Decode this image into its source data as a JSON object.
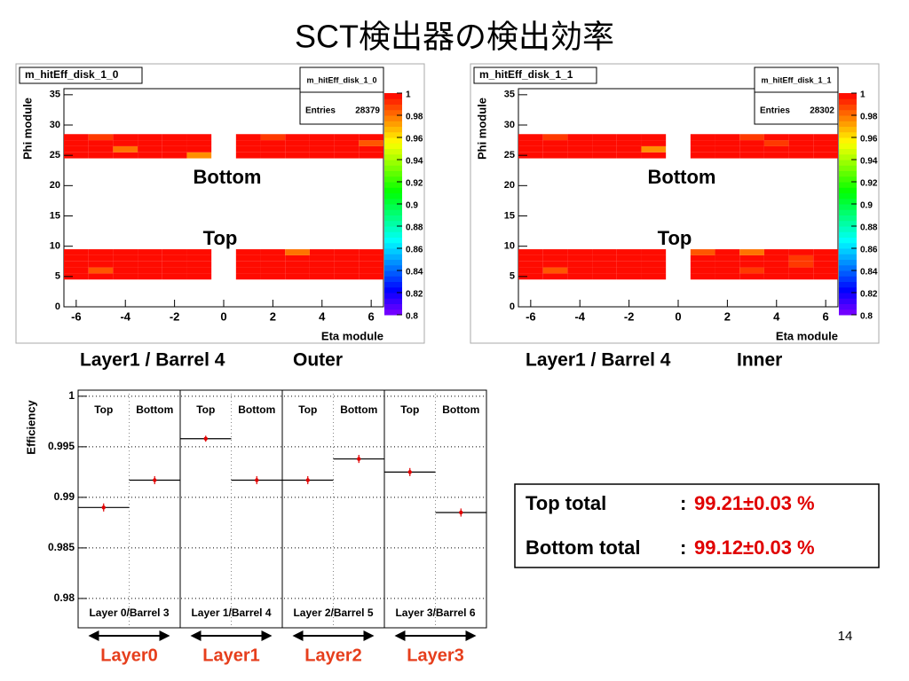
{
  "title": "SCT検出器の検出効率",
  "page_number": "14",
  "layer_labels": [
    "Layer0",
    "Layer1",
    "Layer2",
    "Layer3"
  ],
  "summary": [
    {
      "label": "Top total",
      "colon": ":",
      "value": "99.21±0.03 %"
    },
    {
      "label": "Bottom total",
      "colon": ":",
      "value": "99.12±0.03 %"
    }
  ],
  "chart_data": [
    {
      "type": "heatmap",
      "title": "m_hitEff_disk_1_0",
      "stats": {
        "title": "m_hitEff_disk_1_0",
        "entries_label": "Entries",
        "entries": 28379
      },
      "xlabel": "Eta module",
      "ylabel": "Phi module",
      "annotations": [
        "Bottom",
        "Top"
      ],
      "caption": "Layer1 / Barrel 4",
      "side": "Outer",
      "x": [
        -6,
        -5,
        -4,
        -3,
        -2,
        -1,
        1,
        2,
        3,
        4,
        5,
        6
      ],
      "y": [
        5,
        6,
        7,
        8,
        9,
        25,
        26,
        27,
        28
      ],
      "z": [
        [
          0.998,
          0.998,
          0.998,
          0.998,
          0.998,
          0.998,
          0.998,
          0.998,
          0.998,
          0.998,
          0.998,
          0.998
        ],
        [
          0.998,
          0.985,
          0.998,
          0.998,
          0.998,
          0.998,
          0.998,
          0.998,
          0.998,
          0.998,
          0.998,
          0.998
        ],
        [
          0.998,
          0.998,
          0.998,
          0.998,
          0.998,
          0.998,
          0.998,
          0.998,
          0.998,
          0.998,
          0.998,
          0.998
        ],
        [
          0.998,
          0.998,
          0.998,
          0.998,
          0.998,
          0.998,
          0.998,
          0.998,
          0.998,
          0.998,
          0.998,
          0.998
        ],
        [
          0.998,
          0.998,
          0.998,
          0.998,
          0.998,
          0.998,
          0.998,
          0.998,
          0.98,
          0.998,
          0.998,
          0.998
        ],
        [
          0.998,
          0.998,
          0.998,
          0.998,
          0.998,
          0.975,
          0.998,
          0.998,
          0.998,
          0.998,
          0.998,
          0.998
        ],
        [
          0.998,
          0.998,
          0.98,
          0.998,
          0.998,
          0.998,
          0.998,
          0.998,
          0.998,
          0.998,
          0.998,
          0.998
        ],
        [
          0.998,
          0.998,
          0.998,
          0.998,
          0.998,
          0.998,
          0.998,
          0.998,
          0.998,
          0.998,
          0.998,
          0.985
        ],
        [
          0.998,
          0.99,
          0.998,
          0.998,
          0.998,
          0.998,
          0.998,
          0.99,
          0.998,
          0.998,
          0.998,
          0.998
        ]
      ],
      "xlim": [
        -6.5,
        6.5
      ],
      "xticks": [
        -6,
        -4,
        -2,
        0,
        2,
        4,
        6
      ],
      "ylim": [
        0,
        36
      ],
      "yticks": [
        0,
        5,
        10,
        15,
        20,
        25,
        30,
        35
      ],
      "zlim": [
        0.8,
        1
      ],
      "zticks": [
        0.8,
        0.82,
        0.84,
        0.86,
        0.88,
        0.9,
        0.92,
        0.94,
        0.96,
        0.98,
        1
      ]
    },
    {
      "type": "heatmap",
      "title": "m_hitEff_disk_1_1",
      "stats": {
        "title": "m_hitEff_disk_1_1",
        "entries_label": "Entries",
        "entries": 28302
      },
      "xlabel": "Eta module",
      "ylabel": "Phi module",
      "annotations": [
        "Bottom",
        "Top"
      ],
      "caption": "Layer1 / Barrel 4",
      "side": "Inner",
      "x": [
        -6,
        -5,
        -4,
        -3,
        -2,
        -1,
        1,
        2,
        3,
        4,
        5,
        6
      ],
      "y": [
        5,
        6,
        7,
        8,
        9,
        25,
        26,
        27,
        28
      ],
      "z": [
        [
          0.998,
          0.998,
          0.998,
          0.998,
          0.998,
          0.998,
          0.998,
          0.998,
          0.998,
          0.998,
          0.998,
          0.998
        ],
        [
          0.998,
          0.985,
          0.998,
          0.998,
          0.998,
          0.998,
          0.998,
          0.998,
          0.99,
          0.998,
          0.998,
          0.998
        ],
        [
          0.998,
          0.998,
          0.998,
          0.998,
          0.998,
          0.998,
          0.998,
          0.998,
          0.998,
          0.998,
          0.99,
          0.998
        ],
        [
          0.998,
          0.998,
          0.998,
          0.998,
          0.998,
          0.998,
          0.998,
          0.998,
          0.998,
          0.998,
          0.99,
          0.998
        ],
        [
          0.998,
          0.998,
          0.998,
          0.998,
          0.998,
          0.998,
          0.985,
          0.998,
          0.98,
          0.998,
          0.998,
          0.998
        ],
        [
          0.998,
          0.998,
          0.998,
          0.998,
          0.998,
          0.998,
          0.998,
          0.998,
          0.998,
          0.998,
          0.998,
          0.998
        ],
        [
          0.998,
          0.998,
          0.998,
          0.998,
          0.998,
          0.975,
          0.998,
          0.998,
          0.998,
          0.998,
          0.998,
          0.998
        ],
        [
          0.998,
          0.998,
          0.998,
          0.998,
          0.998,
          0.998,
          0.998,
          0.998,
          0.998,
          0.99,
          0.998,
          0.998
        ],
        [
          0.998,
          0.99,
          0.998,
          0.998,
          0.998,
          0.998,
          0.998,
          0.998,
          0.99,
          0.998,
          0.998,
          0.998
        ]
      ],
      "xlim": [
        -6.5,
        6.5
      ],
      "xticks": [
        -6,
        -4,
        -2,
        0,
        2,
        4,
        6
      ],
      "ylim": [
        0,
        36
      ],
      "yticks": [
        0,
        5,
        10,
        15,
        20,
        25,
        30,
        35
      ],
      "zlim": [
        0.8,
        1
      ],
      "zticks": [
        0.8,
        0.82,
        0.84,
        0.86,
        0.88,
        0.9,
        0.92,
        0.94,
        0.96,
        0.98,
        1
      ]
    },
    {
      "type": "errorbar",
      "ylabel": "Efficiency",
      "categories": [
        "Top",
        "Bottom",
        "Top",
        "Bottom",
        "Top",
        "Bottom",
        "Top",
        "Bottom"
      ],
      "groups": [
        "Layer 0/Barrel 3",
        "Layer 1/Barrel 4",
        "Layer 2/Barrel 5",
        "Layer 3/Barrel 6"
      ],
      "values": [
        0.989,
        0.9917,
        0.9958,
        0.9917,
        0.9917,
        0.9938,
        0.9925,
        0.9885
      ],
      "errors": [
        0.0004,
        0.0004,
        0.0003,
        0.0004,
        0.0004,
        0.0004,
        0.0004,
        0.0004
      ],
      "color": "#e00000",
      "ylim": [
        0.9771,
        1.0006
      ],
      "yticks": [
        0.98,
        0.985,
        0.99,
        0.995,
        1
      ],
      "grid": true
    }
  ]
}
